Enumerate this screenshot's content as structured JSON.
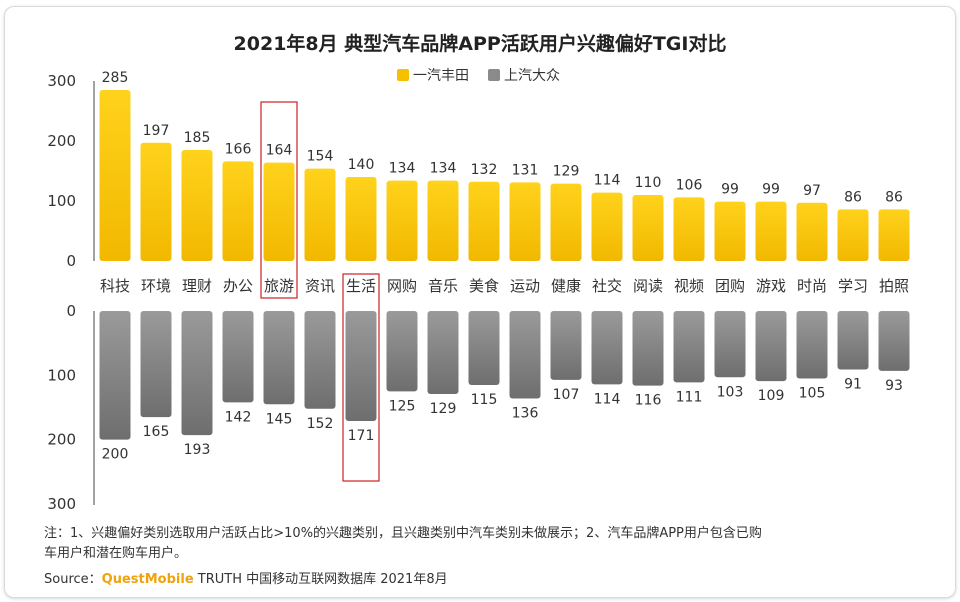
{
  "colors": {
    "series1_top": "#ffd21c",
    "series1_bottom": "#f2b800",
    "series2_top": "#9a9a9a",
    "series2_bottom": "#6e6e6e",
    "highlight": "#cc2222",
    "axis": "#444444",
    "text": "#333333",
    "brand": "#f0a30a"
  },
  "chart_data": {
    "type": "bar",
    "title": "2021年8月 典型汽车品牌APP活跃用户兴趣偏好TGI对比",
    "categories": [
      "科技",
      "环境",
      "理财",
      "办公",
      "旅游",
      "资讯",
      "生活",
      "网购",
      "音乐",
      "美食",
      "运动",
      "健康",
      "社交",
      "阅读",
      "视频",
      "团购",
      "游戏",
      "时尚",
      "学习",
      "拍照"
    ],
    "series": [
      {
        "name": "一汽丰田",
        "values": [
          285,
          197,
          185,
          166,
          164,
          154,
          140,
          134,
          134,
          132,
          131,
          129,
          114,
          110,
          106,
          99,
          99,
          97,
          86,
          86
        ]
      },
      {
        "name": "上汽大众",
        "values": [
          200,
          165,
          193,
          142,
          145,
          152,
          171,
          125,
          129,
          115,
          136,
          107,
          114,
          116,
          111,
          103,
          109,
          105,
          91,
          93
        ]
      }
    ],
    "axis_top": {
      "ylim": [
        0,
        300
      ],
      "ticks": [
        "0",
        "100",
        "200",
        "300"
      ]
    },
    "axis_bottom": {
      "ylim": [
        0,
        300
      ],
      "ticks": [
        "0",
        "100",
        "200",
        "300"
      ],
      "inverted": true
    },
    "highlighted_categories": [
      "旅游",
      "生活"
    ],
    "legend_position": "top-center"
  },
  "note": {
    "line1": "注：1、兴趣偏好类别选取用户活跃占比>10%的兴趣类别，且兴趣类别中汽车类别未做展示；2、汽车品牌APP用户包含已购",
    "line2": "车用户和潜在购车用户。"
  },
  "source": {
    "prefix": "Source：",
    "brand": "QuestMobile",
    "rest": " TRUTH 中国移动互联网数据库 2021年8月"
  }
}
